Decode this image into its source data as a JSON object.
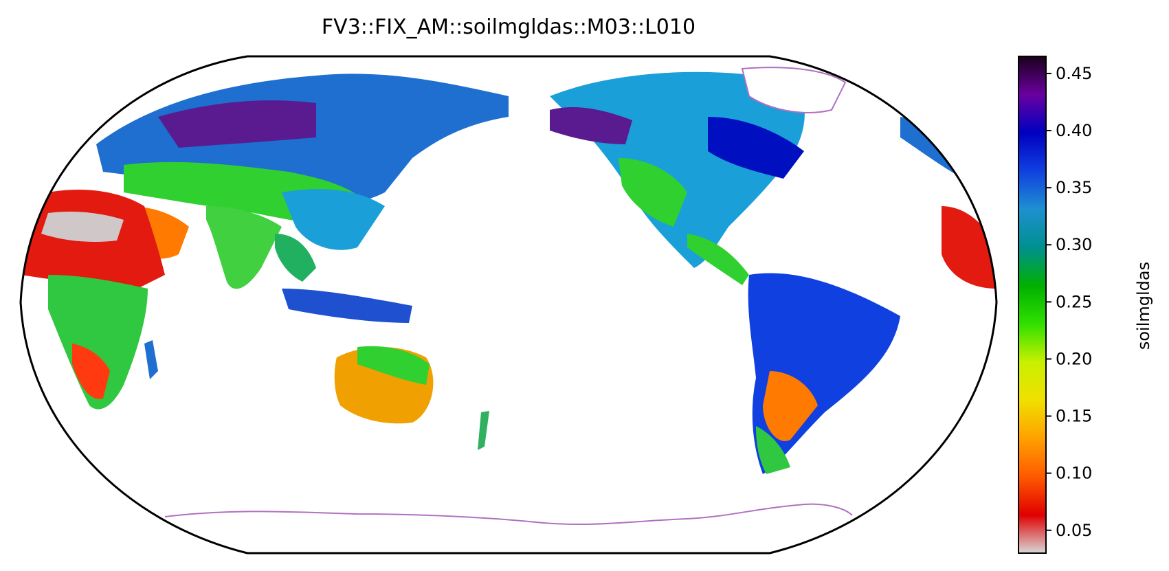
{
  "title": "FV3::FIX_AM::soilmgldas::M03::L010",
  "colorbar": {
    "label": "soilmgldas",
    "ticks": [
      "0.45",
      "0.40",
      "0.35",
      "0.30",
      "0.25",
      "0.20",
      "0.15",
      "0.10",
      "0.05"
    ],
    "range": [
      0.03,
      0.465
    ],
    "colors": [
      "#d8d8d8",
      "#e00000",
      "#ff5a00",
      "#ffa000",
      "#f0e000",
      "#c8f000",
      "#30e000",
      "#00b000",
      "#009090",
      "#1e90d0",
      "#1040e0",
      "#0000c0",
      "#6a00a0",
      "#1a001a"
    ]
  },
  "map": {
    "projection": "Robinson (Pacific-centered)",
    "ocean_color": "#ffffff",
    "coastline_color": "#b070c0"
  }
}
